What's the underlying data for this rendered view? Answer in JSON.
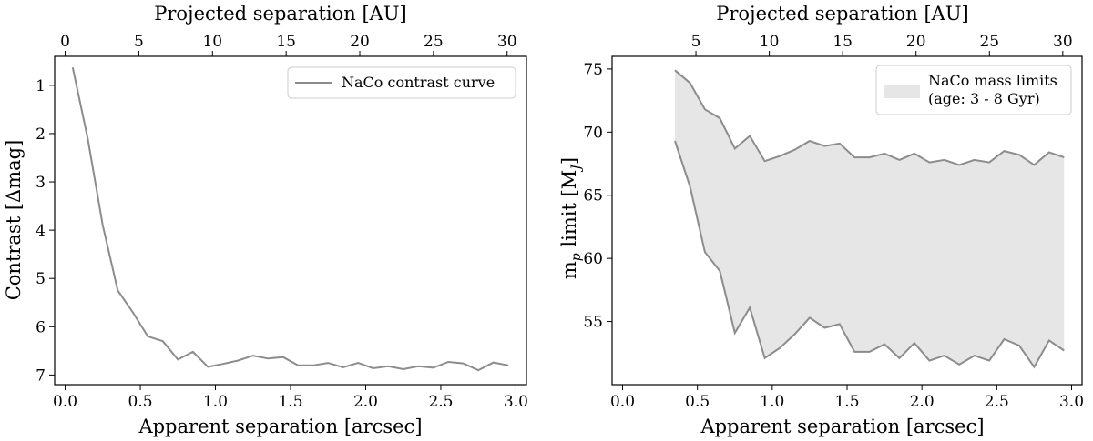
{
  "chart_data": [
    {
      "type": "line",
      "series": [
        {
          "name": "NaCo contrast curve",
          "color": "#8c8c8c",
          "x": [
            0.05,
            0.15,
            0.25,
            0.35,
            0.45,
            0.55,
            0.65,
            0.75,
            0.85,
            0.95,
            1.05,
            1.15,
            1.25,
            1.35,
            1.45,
            1.55,
            1.65,
            1.75,
            1.85,
            1.95,
            2.05,
            2.15,
            2.25,
            2.35,
            2.45,
            2.55,
            2.65,
            2.75,
            2.85,
            2.95
          ],
          "y": [
            0.63,
            2.1,
            3.9,
            5.25,
            5.7,
            6.2,
            6.3,
            6.68,
            6.52,
            6.83,
            6.77,
            6.7,
            6.6,
            6.66,
            6.63,
            6.8,
            6.8,
            6.75,
            6.84,
            6.75,
            6.86,
            6.82,
            6.88,
            6.82,
            6.85,
            6.73,
            6.76,
            6.9,
            6.74,
            6.8
          ]
        }
      ],
      "xlabel": "Apparent separation [arcsec]",
      "ylabel": "Contrast [Δmag]",
      "top_xlabel": "Projected separation [AU]",
      "xlim": [
        -0.07,
        3.07
      ],
      "ylim": [
        7.2,
        0.4
      ],
      "y_inverted": true,
      "xticks": [
        0.0,
        0.5,
        1.0,
        1.5,
        2.0,
        2.5,
        3.0
      ],
      "xtick_labels": [
        "0.0",
        "0.5",
        "1.0",
        "1.5",
        "2.0",
        "2.5",
        "3.0"
      ],
      "yticks": [
        1,
        2,
        3,
        4,
        5,
        6,
        7
      ],
      "ytick_labels": [
        "1",
        "2",
        "3",
        "4",
        "5",
        "6",
        "7"
      ],
      "top_ticks_au": [
        0,
        5,
        10,
        15,
        20,
        25,
        30
      ],
      "top_tick_labels": [
        "0",
        "5",
        "10",
        "15",
        "20",
        "25",
        "30"
      ],
      "au_per_arcsec": 10.2,
      "legend": {
        "entries": [
          "NaCo contrast curve"
        ],
        "location": "top-right"
      },
      "grid": false
    },
    {
      "type": "area",
      "fill_color": "#e6e6e6",
      "edge_color": "#8c8c8c",
      "x": [
        0.35,
        0.45,
        0.55,
        0.65,
        0.75,
        0.85,
        0.95,
        1.05,
        1.15,
        1.25,
        1.35,
        1.45,
        1.55,
        1.65,
        1.75,
        1.85,
        1.95,
        2.05,
        2.15,
        2.25,
        2.35,
        2.45,
        2.55,
        2.65,
        2.75,
        2.85,
        2.95
      ],
      "upper": [
        74.9,
        73.9,
        71.8,
        71.1,
        68.7,
        69.7,
        67.7,
        68.1,
        68.6,
        69.3,
        68.9,
        69.1,
        68.0,
        68.0,
        68.3,
        67.8,
        68.3,
        67.6,
        67.8,
        67.4,
        67.8,
        67.6,
        68.5,
        68.2,
        67.4,
        68.4,
        68.0
      ],
      "lower": [
        69.3,
        65.7,
        60.5,
        59.0,
        54.1,
        56.1,
        52.1,
        52.9,
        54.0,
        55.3,
        54.5,
        54.8,
        52.6,
        52.6,
        53.2,
        52.1,
        53.3,
        51.9,
        52.3,
        51.6,
        52.3,
        51.9,
        53.6,
        53.1,
        51.4,
        53.5,
        52.7
      ],
      "xlabel": "Apparent separation [arcsec]",
      "ylabel": "m",
      "ylabel_sub": "p",
      "ylabel_rest": " limit [M",
      "ylabel_sub2": "J",
      "ylabel_end": "]",
      "top_xlabel": "Projected separation [AU]",
      "xlim": [
        -0.07,
        3.07
      ],
      "ylim": [
        50.0,
        76.0
      ],
      "xticks": [
        0.0,
        0.5,
        1.0,
        1.5,
        2.0,
        2.5,
        3.0
      ],
      "xtick_labels": [
        "0.0",
        "0.5",
        "1.0",
        "1.5",
        "2.0",
        "2.5",
        "3.0"
      ],
      "yticks": [
        55,
        60,
        65,
        70,
        75
      ],
      "ytick_labels": [
        "55",
        "60",
        "65",
        "70",
        "75"
      ],
      "top_ticks_au": [
        5,
        10,
        15,
        20,
        25,
        30
      ],
      "top_tick_labels": [
        "5",
        "10",
        "15",
        "20",
        "25",
        "30"
      ],
      "au_per_arcsec": 10.2,
      "legend": {
        "entries": [
          "NaCo mass limits",
          "(age: 3 - 8 Gyr)"
        ],
        "location": "top-right"
      },
      "grid": false
    }
  ]
}
